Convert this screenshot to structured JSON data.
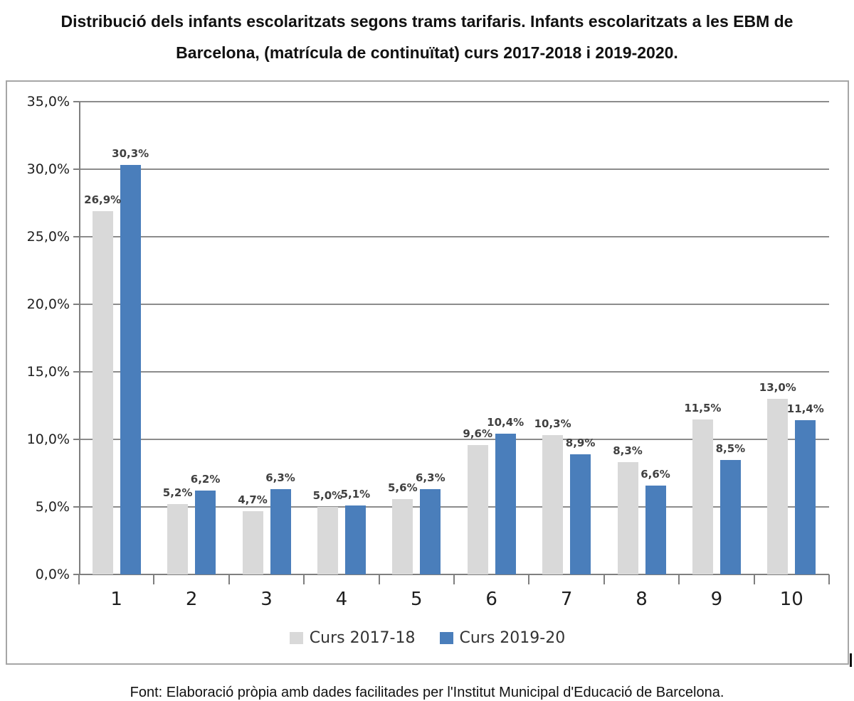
{
  "title": {
    "line1": "Distribució dels infants escolaritzats segons trams tarifaris. Infants escolaritzats a les EBM de",
    "line2": "Barcelona, (matrícula de continuïtat) curs 2017-2018 i 2019-2020."
  },
  "footer": "Font: Elaboració pròpia amb dades facilitades per l'Institut Municipal d'Educació de Barcelona.",
  "colors": {
    "series_2017_18": "#d9d9d9",
    "series_2019_20": "#4a7ebb",
    "gridline": "#8c8c8c",
    "axis": "#7f7f7f",
    "frame_border": "#a6a6a6",
    "data_label": "#404040"
  },
  "chart_data": {
    "type": "bar",
    "title": "Distribució dels infants escolaritzats segons trams tarifaris. Infants escolaritzats a les EBM de Barcelona, (matrícula de continuïtat) curs 2017-2018 i 2019-2020.",
    "xlabel": "",
    "ylabel": "",
    "categories": [
      "1",
      "2",
      "3",
      "4",
      "5",
      "6",
      "7",
      "8",
      "9",
      "10"
    ],
    "series": [
      {
        "name": "Curs 2017-18",
        "values": [
          26.9,
          5.2,
          4.7,
          5.0,
          5.6,
          9.6,
          10.3,
          8.3,
          11.5,
          13.0
        ],
        "labels": [
          "26,9%",
          "5,2%",
          "4,7%",
          "5,0%",
          "5,6%",
          "9,6%",
          "10,3%",
          "8,3%",
          "11,5%",
          "13,0%"
        ]
      },
      {
        "name": "Curs 2019-20",
        "values": [
          30.3,
          6.2,
          6.3,
          5.1,
          6.3,
          10.4,
          8.9,
          6.6,
          8.5,
          11.4
        ],
        "labels": [
          "30,3%",
          "6,2%",
          "6,3%",
          "5,1%",
          "6,3%",
          "10,4%",
          "8,9%",
          "6,6%",
          "8,5%",
          "11,4%"
        ]
      }
    ],
    "y_axis": {
      "min": 0,
      "max": 35,
      "step": 5,
      "tick_labels": [
        "0,0%",
        "5,0%",
        "10,0%",
        "15,0%",
        "20,0%",
        "25,0%",
        "30,0%",
        "35,0%"
      ]
    },
    "grid": true,
    "legend_position": "bottom"
  }
}
